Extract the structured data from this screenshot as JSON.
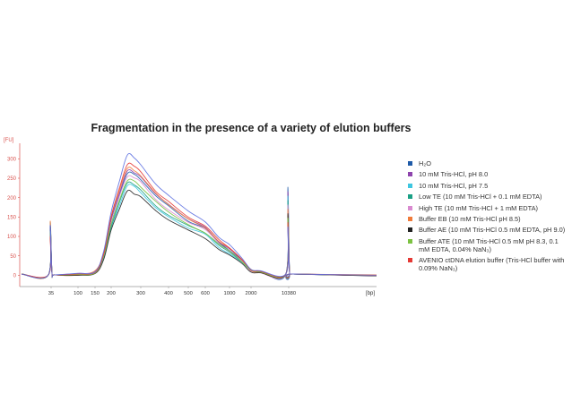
{
  "chart_data": {
    "type": "line",
    "title": "Fragmentation in the presence of a variety of elution buffers",
    "ylabel": "[FU]",
    "xlabel": "[bp]",
    "ylim": [
      -20,
      340
    ],
    "yticks": [
      0,
      50,
      100,
      150,
      200,
      250,
      300
    ],
    "x_tick_labels": [
      "35",
      "100",
      "150",
      "200",
      "300",
      "400",
      "500",
      "600",
      "1000",
      "2000",
      "10380"
    ],
    "marker_peaks": [
      {
        "label": "35",
        "height": 140
      },
      {
        "label": "10380",
        "height": 230
      }
    ],
    "shared_profile": {
      "bp": [
        35,
        100,
        150,
        175,
        200,
        225,
        250,
        275,
        300,
        350,
        400,
        500,
        600,
        800,
        1000,
        1500,
        2000,
        3000,
        10380
      ],
      "description_values_relative": [
        0,
        2,
        10,
        60,
        160,
        240,
        300,
        295,
        280,
        230,
        200,
        160,
        135,
        95,
        75,
        45,
        15,
        10,
        5
      ]
    },
    "series": [
      {
        "name": "H₂O",
        "color": "#1f5ba8",
        "peak_fu": 265
      },
      {
        "name": "10 mM Tris-HCl, pH 8.0",
        "color": "#8e44ad",
        "peak_fu": 270
      },
      {
        "name": "10 mM Tris-HCl, pH 7.5",
        "color": "#3ec6e0",
        "peak_fu": 230
      },
      {
        "name": "Low TE (10 mM Tris-HCl + 0.1 mM EDTA)",
        "color": "#1aa085",
        "peak_fu": 235
      },
      {
        "name": "High TE (10 mM Tris-HCl + 1 mM EDTA)",
        "color": "#d98ad0",
        "peak_fu": 255
      },
      {
        "name": "Buffer EB (10 mM Tris-HCl pH 8.5)",
        "color": "#f07b3a",
        "peak_fu": 275
      },
      {
        "name": "Buffer AE (10 mM Tris-HCl 0.5 mM EDTA, pH 9.0)",
        "color": "#222222",
        "peak_fu": 215
      },
      {
        "name": "Buffer ATE (10 mM Tris-HCl 0.5 mM pH 8.3, 0.1 mM EDTA, 0.04% NaN₃)",
        "color": "#7cc242",
        "peak_fu": 245
      },
      {
        "name": "AVENIO ctDNA elution buffer (Tris-HCl buffer with 0.09% NaN₃)",
        "color": "#e53935",
        "peak_fu": 285
      },
      {
        "name": "",
        "color": "#5a6ee0",
        "peak_fu": 308
      }
    ],
    "legend_position": "right",
    "grid": false
  }
}
